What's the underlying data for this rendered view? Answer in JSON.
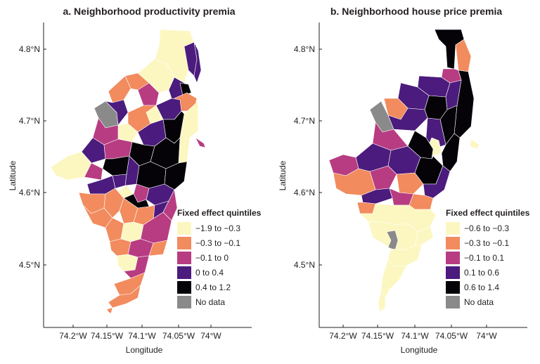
{
  "panels": [
    {
      "title": "a. Neighborhood productivity premia",
      "x_label": "Longitude",
      "y_label": "Latitude",
      "x_ticks": [
        "74.2°W",
        "74.15°W",
        "74.1°W",
        "74.05°W",
        "74°W"
      ],
      "y_ticks": [
        "4.8°N",
        "4.7°N",
        "4.6°N",
        "4.5°N"
      ],
      "legend_title": "Fixed effect quintiles",
      "legend": [
        {
          "label": "−1.9 to −0.3",
          "color": "#fcf7c1"
        },
        {
          "label": "−0.3 to −0.1",
          "color": "#f28b5e"
        },
        {
          "label": "−0.1 to 0",
          "color": "#b83c82"
        },
        {
          "label": "0 to 0.4",
          "color": "#4b1b7d"
        },
        {
          "label": "0.4 to 1.2",
          "color": "#050308"
        },
        {
          "label": "No data",
          "color": "#8a8a8a"
        }
      ]
    },
    {
      "title": "b. Neighborhood house price premia",
      "x_label": "Longitude",
      "y_label": "Latitude",
      "x_ticks": [
        "74.2°W",
        "74.15°W",
        "74.1°W",
        "74.05°W",
        "74°W"
      ],
      "y_ticks": [
        "4.8°N",
        "4.7°N",
        "4.6°N",
        "4.5°N"
      ],
      "legend_title": "Fixed effect quintiles",
      "legend": [
        {
          "label": "−0.6 to −0.3",
          "color": "#fcf7c1"
        },
        {
          "label": "−0.3 to −0.1",
          "color": "#f28b5e"
        },
        {
          "label": "−0.1 to 0.1",
          "color": "#b83c82"
        },
        {
          "label": "0.1 to 0.6",
          "color": "#4b1b7d"
        },
        {
          "label": "0.6 to 1.4",
          "color": "#050308"
        },
        {
          "label": "No data",
          "color": "#8a8a8a"
        }
      ]
    }
  ]
}
